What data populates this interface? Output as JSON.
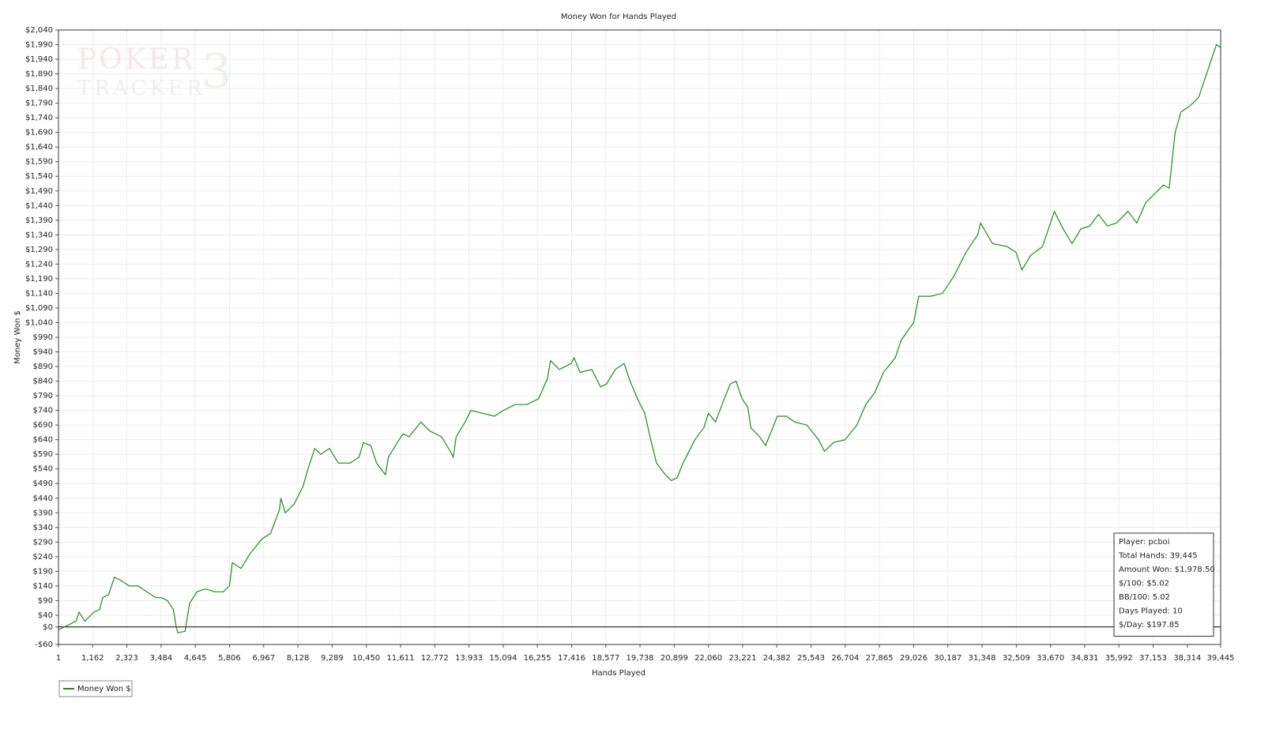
{
  "chart_data": {
    "type": "line",
    "title": "Money Won for Hands Played",
    "x_label": "Hands Played",
    "y_label": "Money Won $",
    "watermark": [
      "POKER",
      "TRACKER",
      "3"
    ],
    "info_box": [
      "Player: pcboi",
      "Total Hands: 39,445",
      "Amount Won: $1,978.50",
      "$/100: $5.02",
      "BB/100: 5.02",
      "Days Played: 10",
      "$/Day: $197.85"
    ],
    "grid": true,
    "zero_line": true,
    "legend": "bottom-left",
    "x": [
      1,
      600,
      700,
      900,
      1200,
      1400,
      1500,
      1700,
      1900,
      2100,
      2400,
      2700,
      3000,
      3300,
      3500,
      3700,
      3900,
      4000,
      4050,
      4300,
      4450,
      4700,
      5000,
      5300,
      5600,
      5806,
      5900,
      6200,
      6500,
      6900,
      7200,
      7500,
      7550,
      7700,
      8000,
      8300,
      8500,
      8700,
      8900,
      9200,
      9500,
      9900,
      10200,
      10350,
      10600,
      10800,
      11100,
      11200,
      11500,
      11700,
      11900,
      12300,
      12600,
      13000,
      13300,
      13400,
      13500,
      13800,
      14000,
      14400,
      14800,
      15100,
      15500,
      15900,
      16300,
      16600,
      16700,
      17000,
      17400,
      17500,
      17700,
      18100,
      18400,
      18600,
      18900,
      19200,
      19400,
      19700,
      19900,
      20100,
      20300,
      20600,
      20800,
      21000,
      21200,
      21600,
      21900,
      22060,
      22300,
      22600,
      22800,
      23000,
      23200,
      23400,
      23500,
      23800,
      24000,
      24400,
      24700,
      25000,
      25400,
      25800,
      26000,
      26300,
      26700,
      27100,
      27400,
      27700,
      28000,
      28400,
      28600,
      29026,
      29200,
      29600,
      30000,
      30400,
      30800,
      31200,
      31300,
      31700,
      32200,
      32500,
      32700,
      33000,
      33400,
      33600,
      33800,
      34100,
      34400,
      34700,
      35000,
      35300,
      35600,
      35900,
      36300,
      36600,
      36900,
      37200,
      37500,
      37700,
      37900,
      38100,
      38400,
      38700,
      39000,
      39300,
      39445
    ],
    "series": [
      {
        "name": "Money Won $",
        "color": "#1e8a1e",
        "values": [
          -10,
          20,
          50,
          20,
          50,
          60,
          100,
          110,
          170,
          160,
          140,
          140,
          120,
          100,
          100,
          90,
          60,
          0,
          -20,
          -15,
          80,
          120,
          130,
          120,
          120,
          140,
          220,
          200,
          250,
          300,
          320,
          400,
          440,
          390,
          420,
          480,
          550,
          610,
          590,
          610,
          560,
          560,
          580,
          630,
          620,
          560,
          520,
          580,
          630,
          660,
          650,
          700,
          670,
          650,
          600,
          580,
          650,
          700,
          740,
          730,
          720,
          740,
          760,
          760,
          780,
          850,
          910,
          880,
          900,
          920,
          870,
          880,
          820,
          830,
          880,
          900,
          840,
          770,
          730,
          640,
          560,
          520,
          500,
          510,
          560,
          640,
          680,
          730,
          700,
          780,
          830,
          840,
          780,
          750,
          680,
          650,
          620,
          720,
          720,
          700,
          690,
          640,
          600,
          630,
          640,
          690,
          760,
          800,
          870,
          920,
          980,
          1040,
          1130,
          1130,
          1140,
          1200,
          1280,
          1340,
          1380,
          1310,
          1300,
          1280,
          1220,
          1270,
          1300,
          1360,
          1420,
          1360,
          1310,
          1360,
          1370,
          1410,
          1370,
          1380,
          1420,
          1380,
          1450,
          1480,
          1510,
          1500,
          1690,
          1760,
          1780,
          1810,
          1900,
          1990,
          1980
        ]
      }
    ],
    "xlim": [
      1,
      39445
    ],
    "xticks": [
      1,
      {
        "value": 1162,
        "label": "1,162"
      },
      {
        "value": 2323,
        "label": "2,323"
      },
      {
        "value": 3484,
        "label": "3,484"
      },
      {
        "value": 4645,
        "label": "4,645"
      },
      {
        "value": 5806,
        "label": "5,806"
      },
      {
        "value": 6967,
        "label": "6,967"
      },
      {
        "value": 8128,
        "label": "8,128"
      },
      {
        "value": 9289,
        "label": "9,289"
      },
      {
        "value": 10450,
        "label": "10,450"
      },
      {
        "value": 11611,
        "label": "11,611"
      },
      {
        "value": 12772,
        "label": "12,772"
      },
      {
        "value": 13933,
        "label": "13,933"
      },
      {
        "value": 15094,
        "label": "15,094"
      },
      {
        "value": 16255,
        "label": "16,255"
      },
      {
        "value": 17416,
        "label": "17,416"
      },
      {
        "value": 18577,
        "label": "18,577"
      },
      {
        "value": 19738,
        "label": "19,738"
      },
      {
        "value": 20899,
        "label": "20,899"
      },
      {
        "value": 22060,
        "label": "22,060"
      },
      {
        "value": 23221,
        "label": "23,221"
      },
      {
        "value": 24382,
        "label": "24,382"
      },
      {
        "value": 25543,
        "label": "25,543"
      },
      {
        "value": 26704,
        "label": "26,704"
      },
      {
        "value": 27865,
        "label": "27,865"
      },
      {
        "value": 29026,
        "label": "29,026"
      },
      {
        "value": 30187,
        "label": "30,187"
      },
      {
        "value": 31348,
        "label": "31,348"
      },
      {
        "value": 32509,
        "label": "32,509"
      },
      {
        "value": 33670,
        "label": "33,670"
      },
      {
        "value": 34831,
        "label": "34,831"
      },
      {
        "value": 35992,
        "label": "35,992"
      },
      {
        "value": 37153,
        "label": "37,153"
      },
      {
        "value": 38314,
        "label": "38,314"
      },
      {
        "value": 39445,
        "label": "39,445"
      }
    ],
    "ylim": [
      -60,
      2040
    ],
    "yticks": [
      {
        "value": -60,
        "label": "-$60"
      },
      {
        "value": 0,
        "label": "$0"
      },
      {
        "value": 40,
        "label": "$40"
      },
      {
        "value": 90,
        "label": "$90"
      },
      {
        "value": 140,
        "label": "$140"
      },
      {
        "value": 190,
        "label": "$190"
      },
      {
        "value": 240,
        "label": "$240"
      },
      {
        "value": 290,
        "label": "$290"
      },
      {
        "value": 340,
        "label": "$340"
      },
      {
        "value": 390,
        "label": "$390"
      },
      {
        "value": 440,
        "label": "$440"
      },
      {
        "value": 490,
        "label": "$490"
      },
      {
        "value": 540,
        "label": "$540"
      },
      {
        "value": 590,
        "label": "$590"
      },
      {
        "value": 640,
        "label": "$640"
      },
      {
        "value": 690,
        "label": "$690"
      },
      {
        "value": 740,
        "label": "$740"
      },
      {
        "value": 790,
        "label": "$790"
      },
      {
        "value": 840,
        "label": "$840"
      },
      {
        "value": 890,
        "label": "$890"
      },
      {
        "value": 940,
        "label": "$940"
      },
      {
        "value": 990,
        "label": "$990"
      },
      {
        "value": 1040,
        "label": "$1,040"
      },
      {
        "value": 1090,
        "label": "$1,090"
      },
      {
        "value": 1140,
        "label": "$1,140"
      },
      {
        "value": 1190,
        "label": "$1,190"
      },
      {
        "value": 1240,
        "label": "$1,240"
      },
      {
        "value": 1290,
        "label": "$1,290"
      },
      {
        "value": 1340,
        "label": "$1,340"
      },
      {
        "value": 1390,
        "label": "$1,390"
      },
      {
        "value": 1440,
        "label": "$1,440"
      },
      {
        "value": 1490,
        "label": "$1,490"
      },
      {
        "value": 1540,
        "label": "$1,540"
      },
      {
        "value": 1590,
        "label": "$1,590"
      },
      {
        "value": 1640,
        "label": "$1,640"
      },
      {
        "value": 1690,
        "label": "$1,690"
      },
      {
        "value": 1740,
        "label": "$1,740"
      },
      {
        "value": 1790,
        "label": "$1,790"
      },
      {
        "value": 1840,
        "label": "$1,840"
      },
      {
        "value": 1890,
        "label": "$1,890"
      },
      {
        "value": 1940,
        "label": "$1,940"
      },
      {
        "value": 1990,
        "label": "$1,990"
      },
      {
        "value": 2040,
        "label": "$2,040"
      }
    ]
  }
}
